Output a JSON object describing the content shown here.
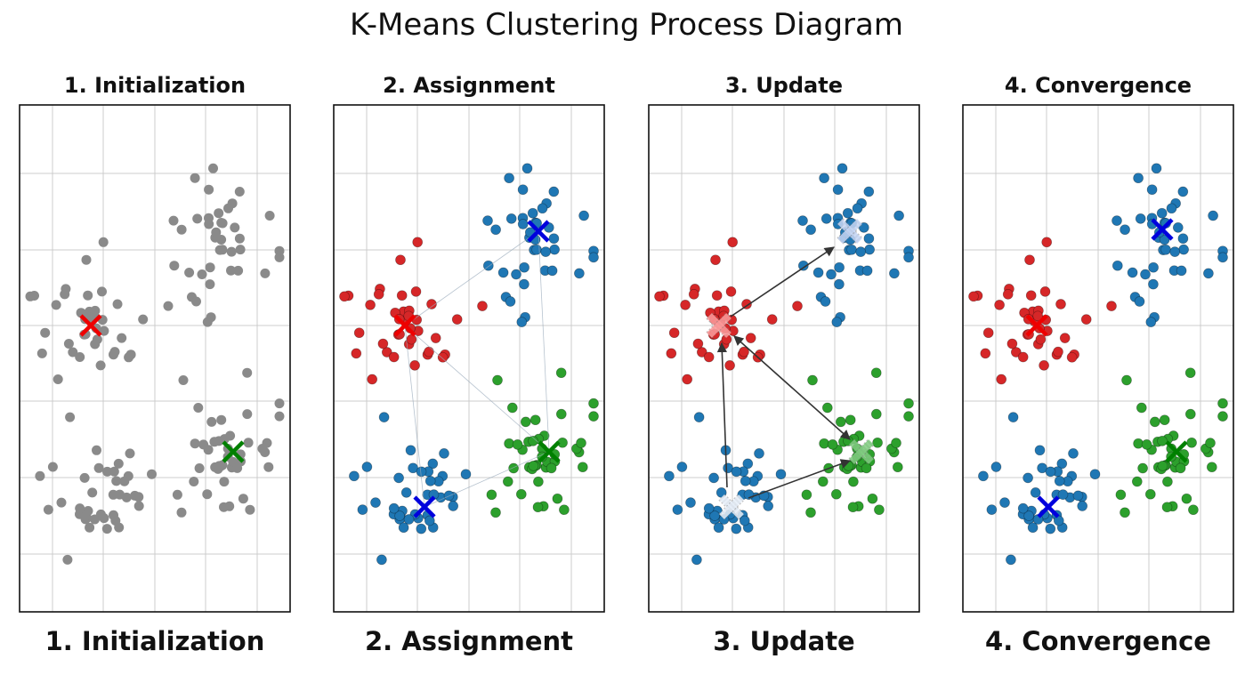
{
  "title": "K-Means Clustering Process Diagram",
  "panels": [
    {
      "title": "1. Initialization",
      "caption": "1. Initialization",
      "stage": "initialization"
    },
    {
      "title": "2. Assignment",
      "caption": "2. Assignment",
      "stage": "assignment"
    },
    {
      "title": "3. Update",
      "caption": "3. Update",
      "stage": "update"
    },
    {
      "title": "4. Convergence",
      "caption": "4. Convergence",
      "stage": "convergence"
    }
  ],
  "colors": {
    "unassigned_point": "#8a8a8a",
    "cluster_red": "#d62728",
    "cluster_blue": "#1f77b4",
    "cluster_green": "#2ca02c",
    "centroid_red": "#ee0000",
    "centroid_blue": "#0000dd",
    "centroid_green": "#008000",
    "grid": "#cccccc",
    "arrow": "#333333"
  }
}
